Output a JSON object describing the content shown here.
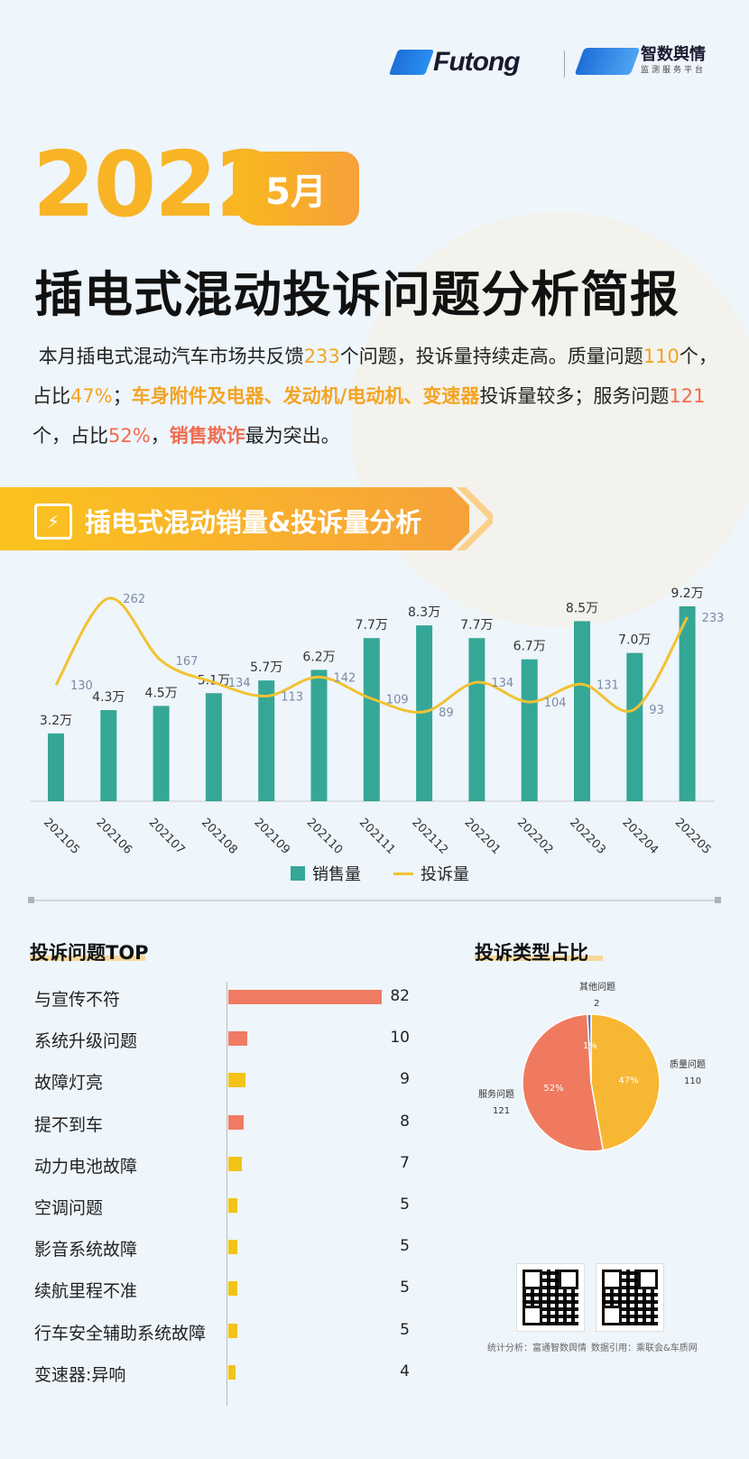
{
  "brand": {
    "futong": "Futong",
    "zs_name": "智数舆情",
    "zs_sub": "监测服务平台"
  },
  "header": {
    "year": "2022",
    "month": "5月",
    "title": "插电式混动投诉问题分析简报"
  },
  "summary": {
    "p1": "本月插电式混动汽车市场共反馈",
    "n_total": "233",
    "p2": "个问题，投诉量持续走高。质量问题",
    "n_quality": "110",
    "p3": "个，占比",
    "pct_quality": "47%",
    "p4": "；",
    "hot_quality": "车身附件及电器、发动机/电动机、变速器",
    "p5": "投诉量较多；服务问题",
    "n_service": "121",
    "p6": "个，占比",
    "pct_service": "52%",
    "p7": "，",
    "hot_service": "销售欺诈",
    "p8": "最为突出。"
  },
  "section1": {
    "title": "插电式混动销量&投诉量分析",
    "icon": "ev-charging-icon"
  },
  "colors": {
    "sales": "#35a797",
    "complaints": "#f1c232",
    "top_red": "#ef7b63",
    "top_yellow": "#f2c318",
    "pie_quality": "#f7b733",
    "pie_service": "#ef7a5f",
    "pie_other": "#5a6fb0"
  },
  "chart_data": [
    {
      "type": "bar",
      "categories": [
        "202105",
        "202106",
        "202107",
        "202108",
        "202109",
        "202110",
        "202111",
        "202112",
        "202201",
        "202202",
        "202203",
        "202204",
        "202205"
      ],
      "series": [
        {
          "name": "销售量",
          "values": [
            3.2,
            4.3,
            4.5,
            5.1,
            5.7,
            6.2,
            7.7,
            8.3,
            7.7,
            6.7,
            8.5,
            7.0,
            9.2
          ],
          "labels": [
            "3.2万",
            "4.3万",
            "4.5万",
            "5.1万",
            "5.7万",
            "6.2万",
            "7.7万",
            "8.3万",
            "7.7万",
            "6.7万",
            "8.5万",
            "7.0万",
            "9.2万"
          ]
        },
        {
          "name": "投诉量",
          "type": "line",
          "values": [
            130,
            262,
            167,
            134,
            113,
            142,
            109,
            89,
            134,
            104,
            131,
            93,
            233
          ]
        }
      ],
      "legend_position": "bottom"
    },
    {
      "type": "bar",
      "title": "投诉问题TOP",
      "orientation": "horizontal",
      "categories": [
        "与宣传不符",
        "系统升级问题",
        "故障灯亮",
        "提不到车",
        "动力电池故障",
        "空调问题",
        "影音系统故障",
        "续航里程不准",
        "行车安全辅助系统故障",
        "变速器:异响"
      ],
      "values": [
        82,
        10,
        9,
        8,
        7,
        5,
        5,
        5,
        5,
        4
      ],
      "bar_colors": [
        "red",
        "red",
        "yellow",
        "red",
        "yellow",
        "yellow",
        "yellow",
        "yellow",
        "yellow",
        "yellow"
      ]
    },
    {
      "type": "pie",
      "title": "投诉类型占比",
      "slices": [
        {
          "label": "质量问题",
          "value": 110,
          "pct": "47%"
        },
        {
          "label": "服务问题",
          "value": 121,
          "pct": "52%"
        },
        {
          "label": "其他问题",
          "value": 2,
          "pct": "1%"
        }
      ]
    }
  ],
  "legend": {
    "sales": "销售量",
    "complaints": "投诉量"
  },
  "top": {
    "title": "投诉问题TOP"
  },
  "pie": {
    "title": "投诉类型占比"
  },
  "footer": {
    "stat": "统计分析：富通智数舆情",
    "source": "数据引用：乘联会&车质网"
  }
}
